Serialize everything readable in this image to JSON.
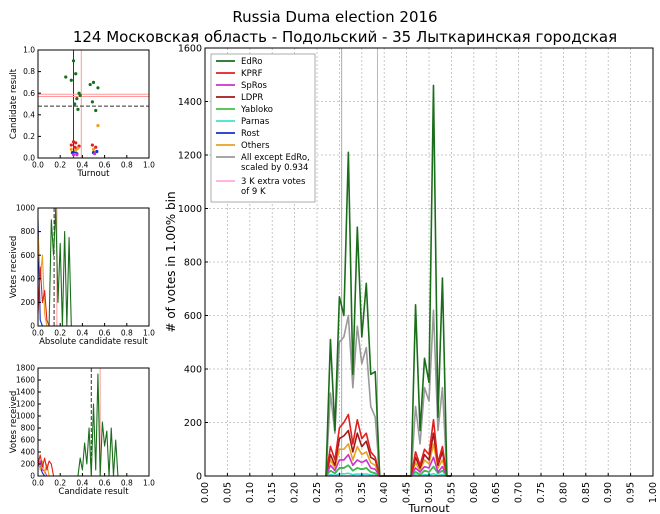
{
  "title_line1": "Russia Duma election 2016",
  "title_line2": "124 Московская область - Подольский - 35 Лыткаринская городская",
  "chart_data": [
    {
      "id": "main",
      "type": "line",
      "xlabel": "Turnout",
      "ylabel": "# of votes in 1.00% bin",
      "xlim": [
        0,
        1
      ],
      "ylim": [
        0,
        1600
      ],
      "xticks": [
        "0.00",
        "0.05",
        "0.10",
        "0.15",
        "0.20",
        "0.25",
        "0.30",
        "0.35",
        "0.40",
        "0.45",
        "0.50",
        "0.55",
        "0.60",
        "0.65",
        "0.70",
        "0.75",
        "0.80",
        "0.85",
        "0.90",
        "0.95",
        "1.00"
      ],
      "yticks": [
        "0",
        "200",
        "400",
        "600",
        "800",
        "1000",
        "1200",
        "1400",
        "1600"
      ],
      "grid": true,
      "legend_position": "top-left",
      "vlines": [
        {
          "x": 0.305,
          "color": "#aaaaaa"
        },
        {
          "x": 0.385,
          "color": "#ff9999"
        }
      ],
      "x": [
        0.27,
        0.28,
        0.29,
        0.3,
        0.31,
        0.32,
        0.33,
        0.34,
        0.35,
        0.36,
        0.37,
        0.38,
        0.39,
        0.4,
        0.46,
        0.47,
        0.48,
        0.49,
        0.5,
        0.51,
        0.52,
        0.53,
        0.54,
        0.55
      ],
      "series": [
        {
          "name": "EdRo",
          "color": "#1a6e1a",
          "values": [
            0,
            510,
            170,
            670,
            600,
            1210,
            380,
            930,
            520,
            720,
            380,
            390,
            0,
            0,
            0,
            640,
            170,
            440,
            350,
            1460,
            220,
            740,
            0,
            0
          ]
        },
        {
          "name": "KPRF",
          "color": "#e02020",
          "values": [
            0,
            110,
            60,
            180,
            200,
            230,
            120,
            210,
            140,
            160,
            90,
            70,
            0,
            0,
            0,
            90,
            40,
            100,
            80,
            210,
            50,
            110,
            0,
            0
          ]
        },
        {
          "name": "SpRos",
          "color": "#cc33cc",
          "values": [
            0,
            40,
            20,
            60,
            60,
            80,
            40,
            60,
            50,
            60,
            30,
            25,
            0,
            0,
            0,
            30,
            15,
            35,
            30,
            70,
            15,
            35,
            0,
            0
          ]
        },
        {
          "name": "LDPR",
          "color": "#a01818",
          "values": [
            0,
            80,
            40,
            140,
            150,
            170,
            90,
            160,
            110,
            130,
            70,
            60,
            0,
            0,
            0,
            70,
            30,
            80,
            60,
            160,
            40,
            90,
            0,
            0
          ]
        },
        {
          "name": "Yabloko",
          "color": "#40c040",
          "values": [
            0,
            20,
            10,
            30,
            30,
            40,
            20,
            30,
            25,
            30,
            15,
            10,
            0,
            0,
            0,
            15,
            5,
            20,
            15,
            35,
            10,
            20,
            0,
            0
          ]
        },
        {
          "name": "Parnas",
          "color": "#40e0d0",
          "values": [
            0,
            5,
            2,
            8,
            8,
            10,
            5,
            8,
            6,
            8,
            4,
            3,
            0,
            0,
            0,
            4,
            2,
            5,
            4,
            9,
            2,
            5,
            0,
            0
          ]
        },
        {
          "name": "Rost",
          "color": "#1030d0",
          "values": [
            0,
            20,
            10,
            30,
            30,
            40,
            20,
            30,
            25,
            30,
            15,
            10,
            0,
            0,
            0,
            15,
            5,
            20,
            15,
            35,
            10,
            20,
            0,
            0
          ]
        },
        {
          "name": "Others",
          "color": "#e8a020",
          "values": [
            0,
            60,
            30,
            100,
            100,
            120,
            60,
            110,
            80,
            90,
            50,
            40,
            0,
            0,
            0,
            50,
            20,
            60,
            45,
            120,
            30,
            60,
            0,
            0
          ]
        },
        {
          "name": "All except EdRo, scaled by 0.934",
          "color": "#999999",
          "values": [
            0,
            310,
            160,
            500,
            520,
            600,
            330,
            560,
            420,
            480,
            260,
            220,
            0,
            0,
            0,
            260,
            120,
            330,
            280,
            620,
            170,
            330,
            0,
            0
          ]
        },
        {
          "name": "3 K extra votes of 9 K",
          "color": "#ffaadd",
          "values": [
            0,
            0,
            0,
            0,
            0,
            0,
            0,
            0,
            0,
            0,
            0,
            0,
            0,
            0,
            0,
            0,
            0,
            0,
            0,
            0,
            0,
            0,
            0,
            0
          ]
        }
      ]
    },
    {
      "id": "inset1",
      "type": "scatter",
      "xlabel": "Turnout",
      "ylabel": "Candidate result",
      "xlim": [
        0,
        1
      ],
      "ylim": [
        0,
        1
      ],
      "xticks": [
        "0.0",
        "0.2",
        "0.4",
        "0.6",
        "0.8",
        "1.0"
      ],
      "yticks": [
        "0.0",
        "0.2",
        "0.4",
        "0.6",
        "0.8",
        "1.0"
      ],
      "hlines": [
        {
          "y": 0.48,
          "color": "#333333",
          "dash": true
        },
        {
          "y": 0.57,
          "color": "#ff9999"
        },
        {
          "y": 0.59,
          "color": "#ff9999"
        }
      ],
      "vlines": [
        {
          "x": 0.32,
          "color": "#333333"
        },
        {
          "x": 0.39,
          "color": "#ff9999"
        }
      ],
      "points": [
        {
          "series": "EdRo",
          "color": "#1a6e1a",
          "xy": [
            [
              0.3,
              0.72
            ],
            [
              0.32,
              0.9
            ],
            [
              0.33,
              0.5
            ],
            [
              0.34,
              0.78
            ],
            [
              0.35,
              0.55
            ],
            [
              0.36,
              0.45
            ],
            [
              0.37,
              0.6
            ],
            [
              0.38,
              0.58
            ],
            [
              0.47,
              0.68
            ],
            [
              0.49,
              0.52
            ],
            [
              0.5,
              0.7
            ],
            [
              0.52,
              0.44
            ],
            [
              0.54,
              0.65
            ],
            [
              0.25,
              0.75
            ]
          ]
        },
        {
          "series": "Others",
          "color": "#e02020",
          "xy": [
            [
              0.3,
              0.12
            ],
            [
              0.32,
              0.15
            ],
            [
              0.33,
              0.1
            ],
            [
              0.34,
              0.14
            ],
            [
              0.35,
              0.09
            ],
            [
              0.37,
              0.11
            ],
            [
              0.49,
              0.12
            ],
            [
              0.52,
              0.1
            ]
          ]
        },
        {
          "series": "Others",
          "color": "#1030d0",
          "xy": [
            [
              0.31,
              0.05
            ],
            [
              0.33,
              0.06
            ],
            [
              0.35,
              0.04
            ],
            [
              0.5,
              0.05
            ],
            [
              0.53,
              0.06
            ]
          ]
        },
        {
          "series": "Others",
          "color": "#e8a020",
          "xy": [
            [
              0.3,
              0.08
            ],
            [
              0.34,
              0.07
            ],
            [
              0.36,
              0.09
            ],
            [
              0.5,
              0.08
            ],
            [
              0.54,
              0.3
            ]
          ]
        },
        {
          "series": "Others",
          "color": "#cc33cc",
          "xy": [
            [
              0.32,
              0.03
            ],
            [
              0.35,
              0.03
            ],
            [
              0.51,
              0.04
            ]
          ]
        }
      ]
    },
    {
      "id": "inset2",
      "type": "line",
      "xlabel": "Absolute candidate result",
      "ylabel": "Votes received",
      "xlim": [
        0,
        1
      ],
      "ylim": [
        0,
        1000
      ],
      "xticks": [
        "0.0",
        "0.2",
        "0.4",
        "0.6",
        "0.8",
        "1.0"
      ],
      "yticks": [
        "0",
        "200",
        "400",
        "600",
        "800",
        "1000"
      ],
      "x": [
        0.0,
        0.02,
        0.04,
        0.06,
        0.08,
        0.1,
        0.12,
        0.14,
        0.16,
        0.18,
        0.2,
        0.22,
        0.24,
        0.26,
        0.28,
        0.3
      ],
      "series": [
        {
          "name": "EdRo",
          "color": "#1a6e1a",
          "values": [
            0,
            0,
            0,
            0,
            0,
            0,
            900,
            600,
            1000,
            200,
            700,
            0,
            800,
            0,
            750,
            0
          ]
        },
        {
          "name": "KPRF",
          "color": "#e02020",
          "values": [
            100,
            500,
            200,
            300,
            50,
            0,
            0,
            0,
            0,
            0,
            0,
            0,
            0,
            0,
            0,
            0
          ]
        },
        {
          "name": "Others",
          "color": "#e8a020",
          "values": [
            800,
            400,
            600,
            100,
            0,
            0,
            0,
            0,
            0,
            0,
            0,
            0,
            0,
            0,
            0,
            0
          ]
        },
        {
          "name": "Rost",
          "color": "#1030d0",
          "values": [
            900,
            50,
            0,
            0,
            0,
            0,
            0,
            0,
            0,
            0,
            0,
            0,
            0,
            0,
            0,
            0
          ]
        }
      ],
      "vlines": [
        {
          "x": 0.145,
          "color": "#333333",
          "dash": true
        },
        {
          "x": 0.17,
          "color": "#ff9999"
        }
      ]
    },
    {
      "id": "inset3",
      "type": "line",
      "xlabel": "Candidate result",
      "ylabel": "Votes received",
      "xlim": [
        0,
        1
      ],
      "ylim": [
        0,
        1800
      ],
      "xticks": [
        "0.0",
        "0.2",
        "0.4",
        "0.6",
        "0.8",
        "1.0"
      ],
      "yticks": [
        "0",
        "200",
        "400",
        "600",
        "800",
        "1000",
        "1200",
        "1400",
        "1600",
        "1800"
      ],
      "x": [
        0.0,
        0.02,
        0.04,
        0.06,
        0.08,
        0.1,
        0.12,
        0.14,
        0.16,
        0.18,
        0.2,
        0.36,
        0.38,
        0.4,
        0.42,
        0.44,
        0.46,
        0.48,
        0.5,
        0.52,
        0.54,
        0.56,
        0.58,
        0.6,
        0.62,
        0.64,
        0.66,
        0.68,
        0.7,
        0.72,
        0.74
      ],
      "series": [
        {
          "name": "EdRo",
          "color": "#1a6e1a",
          "values": [
            0,
            0,
            0,
            0,
            0,
            0,
            0,
            0,
            0,
            0,
            0,
            0,
            300,
            100,
            550,
            200,
            800,
            0,
            1200,
            100,
            1700,
            0,
            900,
            500,
            750,
            0,
            800,
            0,
            600,
            0,
            0
          ]
        },
        {
          "name": "KPRF",
          "color": "#e02020",
          "values": [
            200,
            350,
            150,
            300,
            100,
            250,
            200,
            0,
            0,
            0,
            0,
            0,
            0,
            0,
            0,
            0,
            0,
            0,
            0,
            0,
            0,
            0,
            0,
            0,
            0,
            0,
            0,
            0,
            0,
            0,
            0
          ]
        },
        {
          "name": "Others",
          "color": "#e8a020",
          "values": [
            300,
            100,
            250,
            50,
            200,
            0,
            0,
            0,
            0,
            0,
            0,
            0,
            0,
            0,
            0,
            0,
            0,
            0,
            0,
            0,
            0,
            0,
            0,
            0,
            0,
            0,
            0,
            0,
            0,
            0,
            0
          ]
        },
        {
          "name": "Rost",
          "color": "#1030d0",
          "values": [
            250,
            150,
            50,
            0,
            0,
            0,
            0,
            0,
            0,
            0,
            0,
            0,
            0,
            0,
            0,
            0,
            0,
            0,
            0,
            0,
            0,
            0,
            0,
            0,
            0,
            0,
            0,
            0,
            0,
            0,
            0
          ]
        },
        {
          "name": "SpRos",
          "color": "#cc33cc",
          "values": [
            150,
            250,
            100,
            80,
            0,
            0,
            0,
            0,
            0,
            0,
            0,
            0,
            0,
            0,
            0,
            0,
            0,
            0,
            0,
            0,
            0,
            0,
            0,
            0,
            0,
            0,
            0,
            0,
            0,
            0,
            0
          ]
        }
      ],
      "vlines": [
        {
          "x": 0.48,
          "color": "#333333",
          "dash": true
        },
        {
          "x": 0.56,
          "color": "#ff9999"
        }
      ]
    }
  ]
}
